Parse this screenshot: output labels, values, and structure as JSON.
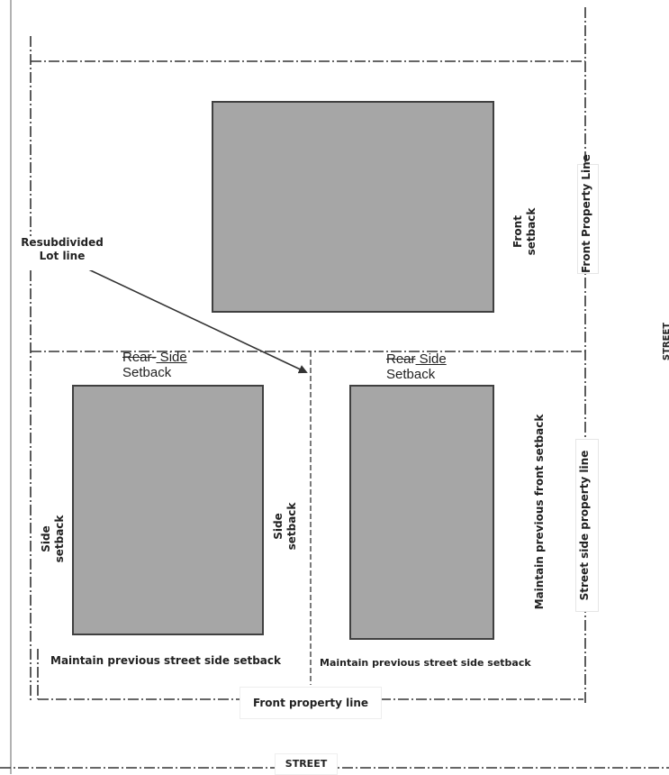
{
  "labels": {
    "resubdivided": "Resubdivided",
    "lot_line": "Lot line",
    "front_setback_top": "Front",
    "front_setback_bottom": "setback",
    "front_property_line_right": "Front  Property Line",
    "street_right_edge": "STREET",
    "rear_left": "Rear-",
    "side_left": " Side",
    "setback_left": "Setback",
    "rear_right": "Rear",
    "side_right": " Side",
    "setback_right": "Setback",
    "side_setback_left_a": "Side",
    "side_setback_left_b": "setback",
    "side_setback_mid_a": "Side",
    "side_setback_mid_b": "setback",
    "maintain_front": "Maintain  previous  front  setback",
    "street_side_property_line": "Street  side  property  line",
    "maintain_street_left": "Maintain  previous  street  side  setback",
    "maintain_street_right": "Maintain previous street side setback",
    "front_property_line_bottom": "Front property line",
    "street_bottom": "STREET"
  },
  "colors": {
    "building_fill": "#a6a6a6",
    "building_stroke": "#404040",
    "line": "#333333"
  }
}
